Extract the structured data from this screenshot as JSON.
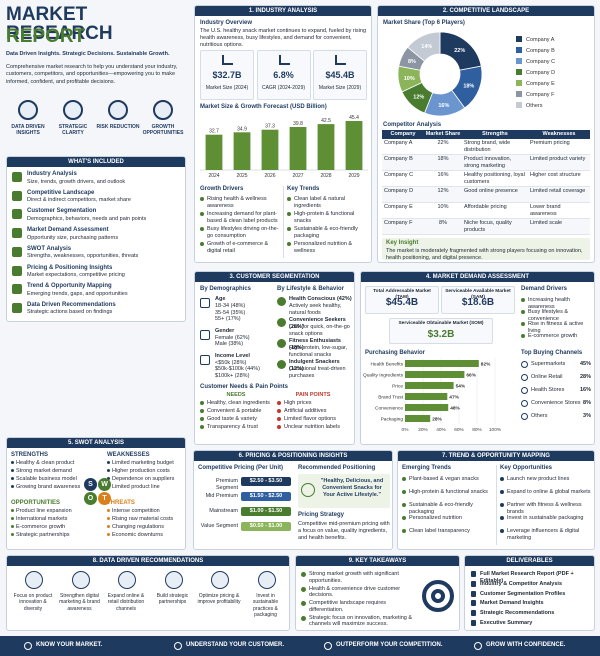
{
  "header": {
    "title_line1": "MARKET RESEARCH",
    "title_line2": "REPORT",
    "tagline": "Data Driven Insights. Strategic Decisions. Sustainable Growth.",
    "intro": "Comprehensive market research to help you understand your industry, customers, competitors, and opportunities—empowering you to make informed, confident, and profitable decisions."
  },
  "pillars": [
    "DATA DRIVEN INSIGHTS",
    "STRATEGIC CLARITY",
    "RISK REDUCTION",
    "GROWTH OPPORTUNITIES"
  ],
  "included": {
    "title": "WHAT'S INCLUDED",
    "items": [
      {
        "title": "Industry Analysis",
        "desc": "Size, trends, growth drivers, and outlook"
      },
      {
        "title": "Competitive Landscape",
        "desc": "Direct & indirect competitors, market share"
      },
      {
        "title": "Customer Segmentation",
        "desc": "Demographics, behaviors, needs and pain points"
      },
      {
        "title": "Market Demand Assessment",
        "desc": "Opportunity size, purchasing patterns"
      },
      {
        "title": "SWOT Analysis",
        "desc": "Strengths, weaknesses, opportunities, threats"
      },
      {
        "title": "Pricing & Positioning Insights",
        "desc": "Market expectations, competitive pricing"
      },
      {
        "title": "Trend & Opportunity Mapping",
        "desc": "Emerging trends, gaps, and opportunities"
      },
      {
        "title": "Data Driven Recommendations",
        "desc": "Strategic actions based on findings"
      }
    ]
  },
  "industry": {
    "heading": "1. INDUSTRY ANALYSIS",
    "overview_title": "Industry Overview",
    "overview": "The U.S. healthy snack market continues to expand, fueled by rising health awareness, busy lifestyles, and demand for convenient, nutritious options.",
    "kpis": [
      {
        "value": "$32.7B",
        "label": "Market Size (2024)"
      },
      {
        "value": "6.8%",
        "label": "CAGR (2024-2029)"
      },
      {
        "value": "$45.4B",
        "label": "Market Size (2029)"
      }
    ],
    "chart": {
      "type": "bar",
      "title": "Market Size & Growth Forecast (USD Billion)",
      "categories": [
        "2024",
        "2025",
        "2026",
        "2027",
        "2028",
        "2029"
      ],
      "values": [
        32.7,
        34.9,
        37.3,
        39.8,
        42.5,
        45.4
      ],
      "ylim": [
        0,
        50
      ],
      "color": "#5f8f35"
    },
    "drivers": {
      "title": "Growth Drivers",
      "items": [
        "Rising health & wellness awareness",
        "Increasing demand for plant-based & clean label products",
        "Busy lifestyles driving on-the-go consumption",
        "Growth of e-commerce & digital retail"
      ]
    },
    "trends": {
      "title": "Key Trends",
      "items": [
        "Clean label & natural ingredients",
        "High-protein & functional snacks",
        "Sustainable & eco-friendly packaging",
        "Personalized nutrition & wellness"
      ]
    }
  },
  "competitive": {
    "heading": "2. COMPETITIVE LANDSCAPE",
    "chart": {
      "type": "pie",
      "title": "Market Share (Top 6 Players)",
      "categories": [
        "Company A",
        "Company B",
        "Company C",
        "Company D",
        "Company E",
        "Company F",
        "Others"
      ],
      "values": [
        22,
        18,
        16,
        12,
        10,
        8,
        14
      ],
      "value_labels": [
        "22%",
        "18%",
        "16%",
        "12%",
        "10%",
        "8%",
        "14%"
      ],
      "colors": [
        "#1f3a5f",
        "#2f5f9e",
        "#6b95cf",
        "#4a7c2f",
        "#8cb45a",
        "#8c96a3",
        "#c3cad3"
      ]
    },
    "table": {
      "title": "Competitor Analysis",
      "columns": [
        "Company",
        "Market Share",
        "Strengths",
        "Weaknesses"
      ],
      "rows": [
        [
          "Company A",
          "22%",
          "Strong brand, wide distribution",
          "Premium pricing"
        ],
        [
          "Company B",
          "18%",
          "Product innovation, strong marketing",
          "Limited product variety"
        ],
        [
          "Company C",
          "16%",
          "Healthy positioning, loyal customers",
          "Higher cost structure"
        ],
        [
          "Company D",
          "12%",
          "Good online presence",
          "Limited retail coverage"
        ],
        [
          "Company E",
          "10%",
          "Affordable pricing",
          "Lower brand awareness"
        ],
        [
          "Company F",
          "8%",
          "Niche focus, quality products",
          "Limited scale"
        ]
      ]
    },
    "insight": {
      "title": "Key Insight",
      "text": "The market is moderately fragmented with strong players focusing on innovation, health positioning, and digital presence."
    }
  },
  "segmentation": {
    "heading": "3. CUSTOMER SEGMENTATION",
    "demographics": {
      "title": "By Demographics",
      "groups": [
        {
          "label": "Age",
          "items": [
            "18-34 (48%)",
            "35-54 (35%)",
            "55+ (17%)"
          ]
        },
        {
          "label": "Gender",
          "items": [
            "Female (62%)",
            "Male (38%)"
          ]
        },
        {
          "label": "Income Level",
          "items": [
            "<$50k (28%)",
            "$50k-$100k (44%)",
            "$100k+ (28%)"
          ]
        }
      ]
    },
    "lifestyle": {
      "title": "By Lifestyle & Behavior",
      "items": [
        {
          "name": "Health Conscious (42%)",
          "desc": "Actively seek healthy, natural foods"
        },
        {
          "name": "Convenience Seekers (28%)",
          "desc": "Look for quick, on-the-go snack options"
        },
        {
          "name": "Fitness Enthusiasts (18%)",
          "desc": "High-protein, low-sugar, functional snacks"
        },
        {
          "name": "Indulgent Snackers (12%)",
          "desc": "Occasional treat-driven purchases"
        }
      ]
    },
    "needs": {
      "title": "Customer Needs & Pain Points",
      "needs_title": "NEEDS",
      "needs": [
        "Healthy, clean ingredients",
        "Convenient & portable",
        "Good taste & variety",
        "Transparency & trust"
      ],
      "pains_title": "PAIN POINTS",
      "pains": [
        "High prices",
        "Artificial additives",
        "Limited flavor options",
        "Unclear nutrition labels"
      ]
    }
  },
  "demand": {
    "heading": "4. MARKET DEMAND ASSESSMENT",
    "markets": [
      {
        "label": "Total Addressable Market (TAM)",
        "value": "$45.4B"
      },
      {
        "label": "Serviceable Available Market (SAM)",
        "value": "$18.6B"
      },
      {
        "label": "Serviceable Obtainable Market (SOM)",
        "value": "$3.2B"
      }
    ],
    "drivers": {
      "title": "Demand Drivers",
      "items": [
        "Increasing health awareness",
        "Busy lifestyles & convenience",
        "Rise in fitness & active living",
        "E-commerce growth"
      ]
    },
    "behavior": {
      "type": "bar",
      "orientation": "horizontal",
      "title": "Purchasing Behavior",
      "categories": [
        "Health Benefits",
        "Quality Ingredients",
        "Price",
        "Brand Trust",
        "Convenience",
        "Packaging"
      ],
      "values": [
        82,
        66,
        54,
        47,
        48,
        28
      ],
      "value_labels": [
        "82%",
        "66%",
        "54%",
        "47%",
        "48%",
        "28%"
      ],
      "xlim": [
        0,
        100
      ],
      "xticks": [
        {
          "value": 0,
          "label": "0%"
        },
        {
          "value": 20,
          "label": "20%"
        },
        {
          "value": 40,
          "label": "40%"
        },
        {
          "value": 60,
          "label": "60%"
        },
        {
          "value": 80,
          "label": "80%"
        },
        {
          "value": 100,
          "label": "100%"
        }
      ],
      "color": "#5f8f35"
    },
    "channels": {
      "title": "Top Buying Channels",
      "rows": [
        [
          "Supermarkets",
          "45%"
        ],
        [
          "Online Retail",
          "28%"
        ],
        [
          "Health Stores",
          "16%"
        ],
        [
          "Convenience Stores",
          "8%"
        ],
        [
          "Others",
          "3%"
        ]
      ]
    }
  },
  "swot": {
    "heading": "5. SWOT ANALYSIS",
    "letters": [
      "S",
      "W",
      "O",
      "T"
    ],
    "quadrants": [
      {
        "title": "STRENGTHS",
        "items": [
          "Healthy & clean product",
          "Strong market demand",
          "Scalable business model",
          "Growing brand awareness"
        ]
      },
      {
        "title": "WEAKNESSES",
        "items": [
          "Limited marketing budget",
          "Higher production costs",
          "Dependence on suppliers",
          "Limited product line"
        ]
      },
      {
        "title": "OPPORTUNITIES",
        "items": [
          "Product line expansion",
          "International markets",
          "E-commerce growth",
          "Strategic partnerships"
        ]
      },
      {
        "title": "THREATS",
        "items": [
          "Intense competition",
          "Rising raw material costs",
          "Changing regulations",
          "Economic downturns"
        ]
      }
    ]
  },
  "pricing": {
    "heading": "6. PRICING & POSITIONING INSIGHTS",
    "pricing_title": "Competitive Pricing (Per Unit)",
    "tiers": [
      {
        "name": "Premium Segment",
        "range": "$2.50 - $3.50"
      },
      {
        "name": "Mid Premium",
        "range": "$1.50 - $2.50"
      },
      {
        "name": "Mainstream",
        "range": "$1.00 - $1.50"
      },
      {
        "name": "Value Segment",
        "range": "$0.50 - $1.00"
      }
    ],
    "positioning_title": "Recommended Positioning",
    "quote": "\"Healthy, Delicious, and Convenient Snacks for Your Active Lifestyle.\"",
    "strategy_title": "Pricing Strategy",
    "strategy": "Competitive mid-premium pricing with a focus on value, quality ingredients, and health benefits."
  },
  "trends": {
    "heading": "7. TREND & OPPORTUNITY MAPPING",
    "emerging": {
      "title": "Emerging Trends",
      "items": [
        "Plant-based & vegan snacks",
        "High-protein & functional snacks",
        "Sustainable & eco-friendly packaging",
        "Personalized nutrition",
        "Clean label transparency"
      ]
    },
    "opportunities": {
      "title": "Key Opportunities",
      "items": [
        "Launch new product lines",
        "Expand to online & global markets",
        "Partner with fitness & wellness brands",
        "Invest in sustainable packaging",
        "Leverage influencers & digital marketing"
      ]
    }
  },
  "recommendations": {
    "heading": "8. DATA DRIVEN RECOMMENDATIONS",
    "items": [
      "Focus on product innovation & diversity",
      "Strengthen digital marketing & brand awareness",
      "Expand online & retail distribution channels",
      "Build strategic partnerships",
      "Optimize pricing & improve profitability",
      "Invest in sustainable practices & packaging"
    ]
  },
  "takeaways": {
    "heading": "9. KEY TAKEAWAYS",
    "items": [
      "Strong market growth with significant opportunities.",
      "Health & convenience drive customer decisions.",
      "Competitive landscape requires differentiation.",
      "Strategic focus on innovation, marketing & channels will maximize success."
    ]
  },
  "deliverables": {
    "heading": "DELIVERABLES",
    "items": [
      "Full Market Research Report (PDF + Editable)",
      "Industry & Competitor Analysis",
      "Customer Segmentation Profiles",
      "Market Demand Insights",
      "Strategic Recommendations",
      "Executive Summary"
    ]
  },
  "footer": [
    "KNOW YOUR MARKET.",
    "UNDERSTAND YOUR CUSTOMER.",
    "OUTPERFORM YOUR COMPETITION.",
    "GROW WITH CONFIDENCE."
  ]
}
